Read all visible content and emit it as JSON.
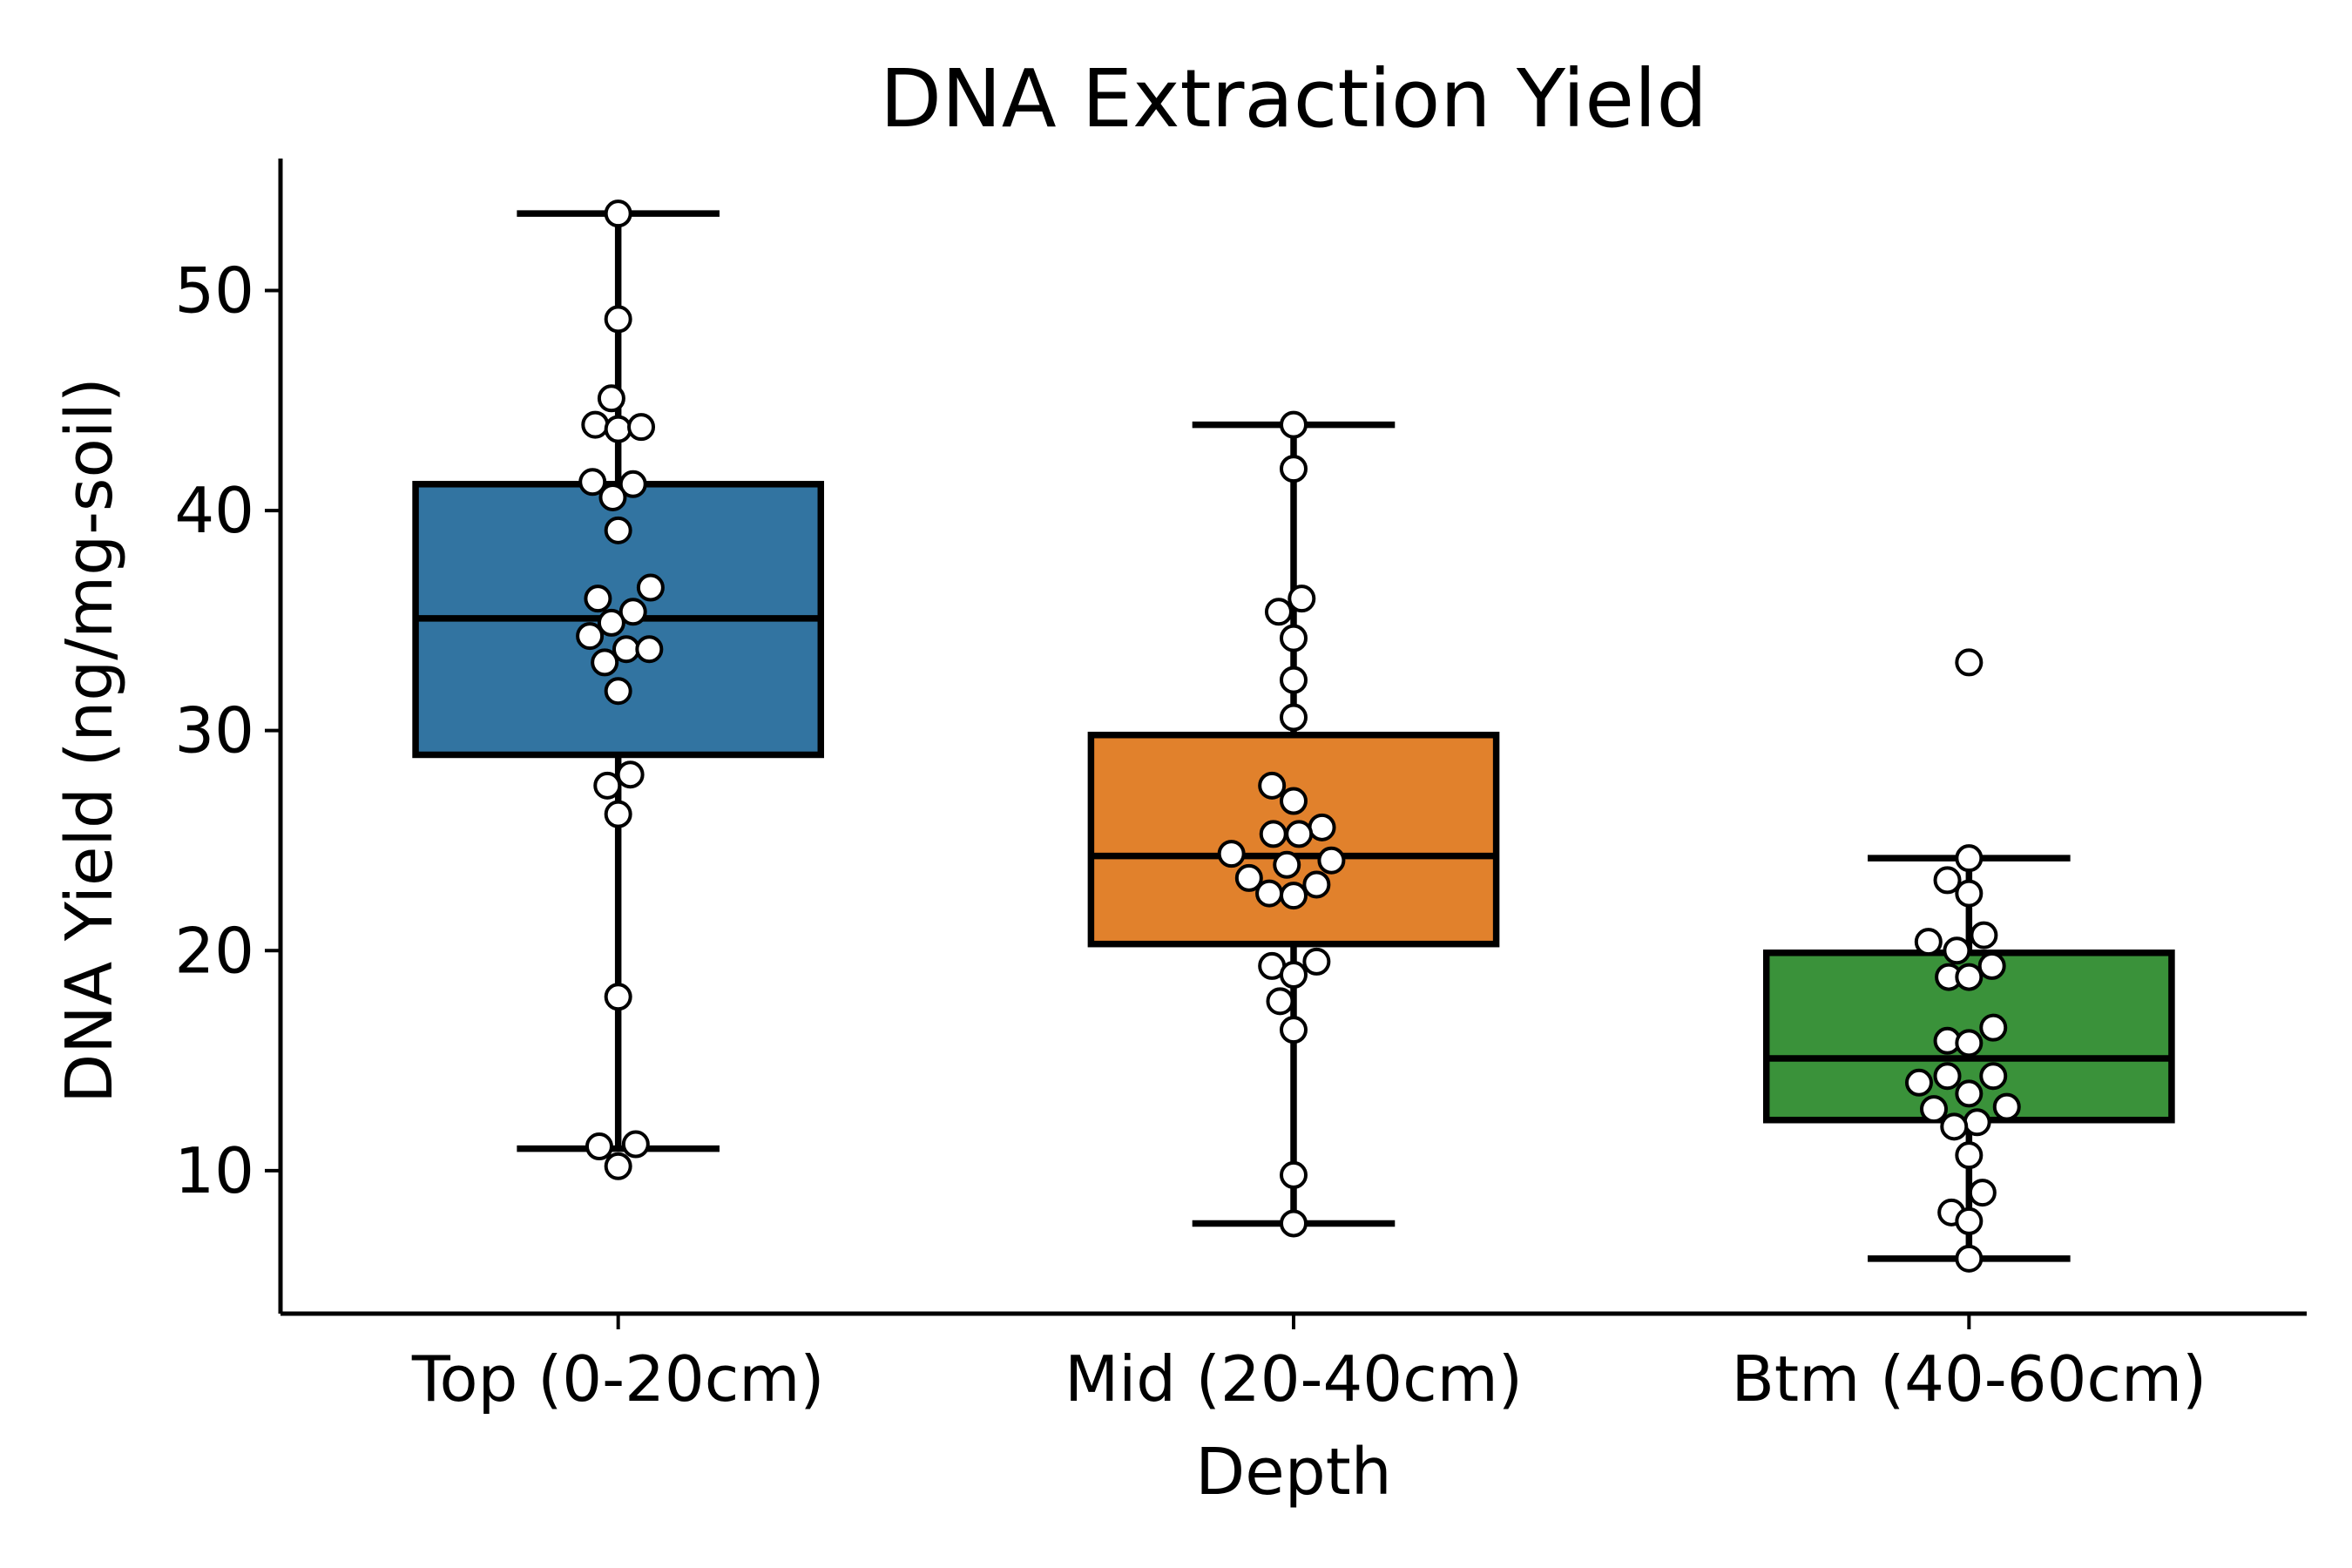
{
  "chart_data": {
    "type": "box",
    "title": "DNA Extraction Yield",
    "xlabel": "Depth",
    "ylabel": "DNA Yield (ng/mg-soil)",
    "ylim": [
      3.5,
      56.0
    ],
    "yticks": [
      10,
      20,
      30,
      40,
      50
    ],
    "grid": false,
    "categories": [
      "Top (0-20cm)",
      "Mid (20-40cm)",
      "Btm (40-60cm)"
    ],
    "boxes": [
      {
        "category": "Top (0-20cm)",
        "color": "#3274a1",
        "whisker_low": 11.0,
        "q1": 28.9,
        "median": 35.1,
        "q3": 41.2,
        "whisker_high": 53.5,
        "points": [
          {
            "y": 53.5,
            "jitter": 0
          },
          {
            "y": 48.7,
            "jitter": 0
          },
          {
            "y": 45.1,
            "jitter": -0.05
          },
          {
            "y": 43.9,
            "jitter": -0.17
          },
          {
            "y": 43.7,
            "jitter": 0
          },
          {
            "y": 43.8,
            "jitter": 0.17
          },
          {
            "y": 41.3,
            "jitter": -0.19
          },
          {
            "y": 41.2,
            "jitter": 0.11
          },
          {
            "y": 40.6,
            "jitter": -0.04
          },
          {
            "y": 39.1,
            "jitter": 0
          },
          {
            "y": 36.5,
            "jitter": 0.24
          },
          {
            "y": 36.0,
            "jitter": -0.15
          },
          {
            "y": 35.4,
            "jitter": 0.11
          },
          {
            "y": 34.9,
            "jitter": -0.05
          },
          {
            "y": 34.3,
            "jitter": -0.21
          },
          {
            "y": 33.7,
            "jitter": 0.06
          },
          {
            "y": 33.7,
            "jitter": 0.23
          },
          {
            "y": 33.1,
            "jitter": -0.1
          },
          {
            "y": 31.8,
            "jitter": 0
          },
          {
            "y": 28.0,
            "jitter": 0.09
          },
          {
            "y": 27.5,
            "jitter": -0.08
          },
          {
            "y": 26.2,
            "jitter": 0
          },
          {
            "y": 17.9,
            "jitter": 0
          },
          {
            "y": 11.1,
            "jitter": -0.14
          },
          {
            "y": 11.2,
            "jitter": 0.13
          },
          {
            "y": 10.2,
            "jitter": 0
          }
        ]
      },
      {
        "category": "Mid (20-40cm)",
        "color": "#e1812c",
        "whisker_low": 7.6,
        "q1": 20.3,
        "median": 24.3,
        "q3": 29.8,
        "whisker_high": 43.9,
        "points": [
          {
            "y": 43.9,
            "jitter": 0
          },
          {
            "y": 41.9,
            "jitter": 0
          },
          {
            "y": 36.0,
            "jitter": 0.06
          },
          {
            "y": 35.4,
            "jitter": -0.11
          },
          {
            "y": 34.2,
            "jitter": 0
          },
          {
            "y": 32.3,
            "jitter": 0
          },
          {
            "y": 30.6,
            "jitter": 0
          },
          {
            "y": 27.5,
            "jitter": -0.16
          },
          {
            "y": 26.8,
            "jitter": 0
          },
          {
            "y": 25.6,
            "jitter": 0.21
          },
          {
            "y": 25.3,
            "jitter": -0.15
          },
          {
            "y": 25.3,
            "jitter": 0.04
          },
          {
            "y": 24.4,
            "jitter": -0.46
          },
          {
            "y": 24.1,
            "jitter": 0.28
          },
          {
            "y": 23.9,
            "jitter": -0.05
          },
          {
            "y": 23.3,
            "jitter": -0.33
          },
          {
            "y": 23.0,
            "jitter": 0.17
          },
          {
            "y": 22.6,
            "jitter": -0.18
          },
          {
            "y": 22.5,
            "jitter": 0
          },
          {
            "y": 19.5,
            "jitter": 0.17
          },
          {
            "y": 19.3,
            "jitter": -0.16
          },
          {
            "y": 18.9,
            "jitter": 0
          },
          {
            "y": 17.7,
            "jitter": -0.1
          },
          {
            "y": 16.4,
            "jitter": 0
          },
          {
            "y": 9.8,
            "jitter": 0
          },
          {
            "y": 7.6,
            "jitter": 0
          }
        ]
      },
      {
        "category": "Btm (40-60cm)",
        "color": "#3a923a",
        "whisker_low": 6.0,
        "q1": 12.3,
        "median": 15.1,
        "q3": 19.9,
        "whisker_high": 24.2,
        "points": [
          {
            "y": 33.1,
            "jitter": 0
          },
          {
            "y": 24.2,
            "jitter": 0
          },
          {
            "y": 23.2,
            "jitter": -0.16
          },
          {
            "y": 22.6,
            "jitter": 0
          },
          {
            "y": 20.7,
            "jitter": 0.11
          },
          {
            "y": 20.4,
            "jitter": -0.3
          },
          {
            "y": 20.0,
            "jitter": -0.09
          },
          {
            "y": 19.3,
            "jitter": 0.17
          },
          {
            "y": 18.8,
            "jitter": -0.15
          },
          {
            "y": 18.8,
            "jitter": 0
          },
          {
            "y": 16.5,
            "jitter": 0.18
          },
          {
            "y": 15.9,
            "jitter": -0.16
          },
          {
            "y": 15.8,
            "jitter": 0
          },
          {
            "y": 14.3,
            "jitter": -0.16
          },
          {
            "y": 14.3,
            "jitter": 0.18
          },
          {
            "y": 14.0,
            "jitter": -0.37
          },
          {
            "y": 13.5,
            "jitter": 0
          },
          {
            "y": 12.9,
            "jitter": 0.28
          },
          {
            "y": 12.8,
            "jitter": -0.26
          },
          {
            "y": 12.2,
            "jitter": 0.06
          },
          {
            "y": 12.0,
            "jitter": -0.11
          },
          {
            "y": 10.7,
            "jitter": 0
          },
          {
            "y": 9.0,
            "jitter": 0.1
          },
          {
            "y": 8.1,
            "jitter": -0.13
          },
          {
            "y": 7.7,
            "jitter": 0
          },
          {
            "y": 6.0,
            "jitter": 0
          }
        ]
      }
    ]
  }
}
